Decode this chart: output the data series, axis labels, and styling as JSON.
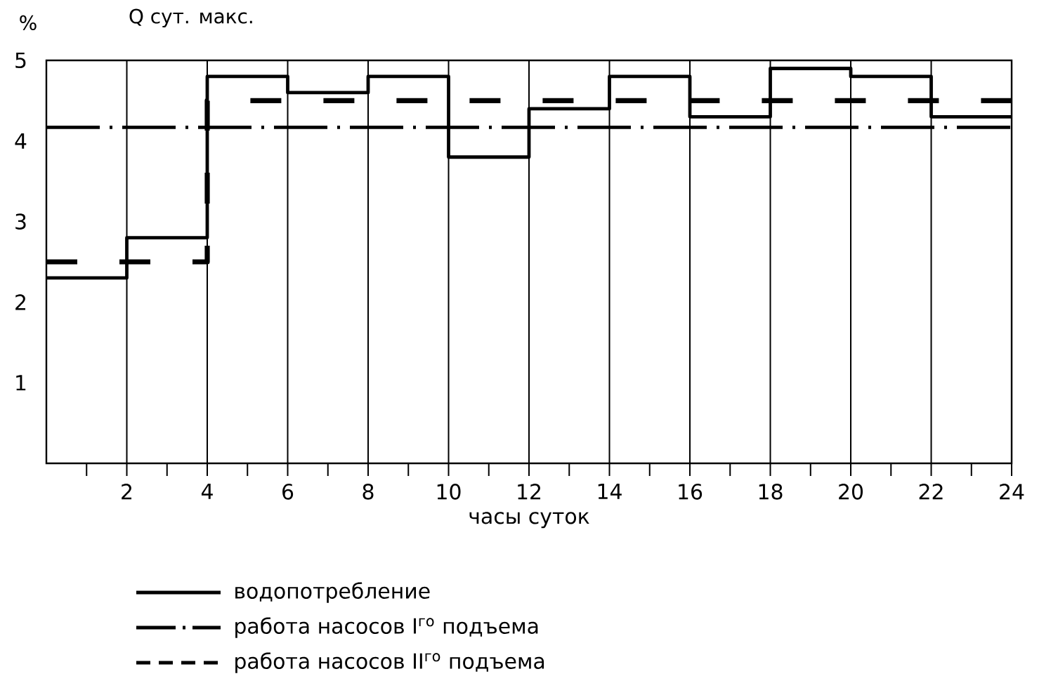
{
  "chart_data": {
    "type": "step",
    "title": "Q сут. макс.",
    "ylabel": "%",
    "xlabel": "часы суток",
    "xlim": [
      0,
      24
    ],
    "ylim": [
      0,
      5
    ],
    "xticks": [
      {
        "value": 1,
        "label": null
      },
      2,
      {
        "value": 3,
        "label": null
      },
      4,
      {
        "value": 5,
        "label": null
      },
      6,
      {
        "value": 7,
        "label": null
      },
      8,
      {
        "value": 9,
        "label": null
      },
      10,
      {
        "value": 11,
        "label": null
      },
      12,
      {
        "value": 13,
        "label": null
      },
      14,
      {
        "value": 15,
        "label": null
      },
      16,
      {
        "value": 17,
        "label": null
      },
      18,
      {
        "value": 19,
        "label": null
      },
      20,
      {
        "value": 21,
        "label": null
      },
      22,
      {
        "value": 23,
        "label": null
      },
      24
    ],
    "yticks": [
      1,
      2,
      3,
      4,
      5
    ],
    "grid": "x",
    "legend": "bottom",
    "series": [
      {
        "name": "водопотребление",
        "color": "#000000",
        "line_style": "solid",
        "x": [
          0,
          2,
          4,
          6,
          8,
          10,
          12,
          14,
          16,
          18,
          20,
          22,
          24
        ],
        "values": [
          2.3,
          2.8,
          4.8,
          4.6,
          4.8,
          3.8,
          4.4,
          4.8,
          4.3,
          4.9,
          4.8,
          4.3,
          4.3
        ]
      },
      {
        "name": "работа насосов I$^{го}$ подъема",
        "color": "#000000",
        "line_style": "dashdot",
        "x": [
          0,
          24
        ],
        "values": [
          4.17,
          4.17
        ]
      },
      {
        "name": "работа насосов II$^{го}$ подъема",
        "color": "#000000",
        "line_style": "dashed",
        "x": [
          0,
          4,
          24
        ],
        "values": [
          2.5,
          4.5,
          4.5
        ]
      }
    ]
  }
}
